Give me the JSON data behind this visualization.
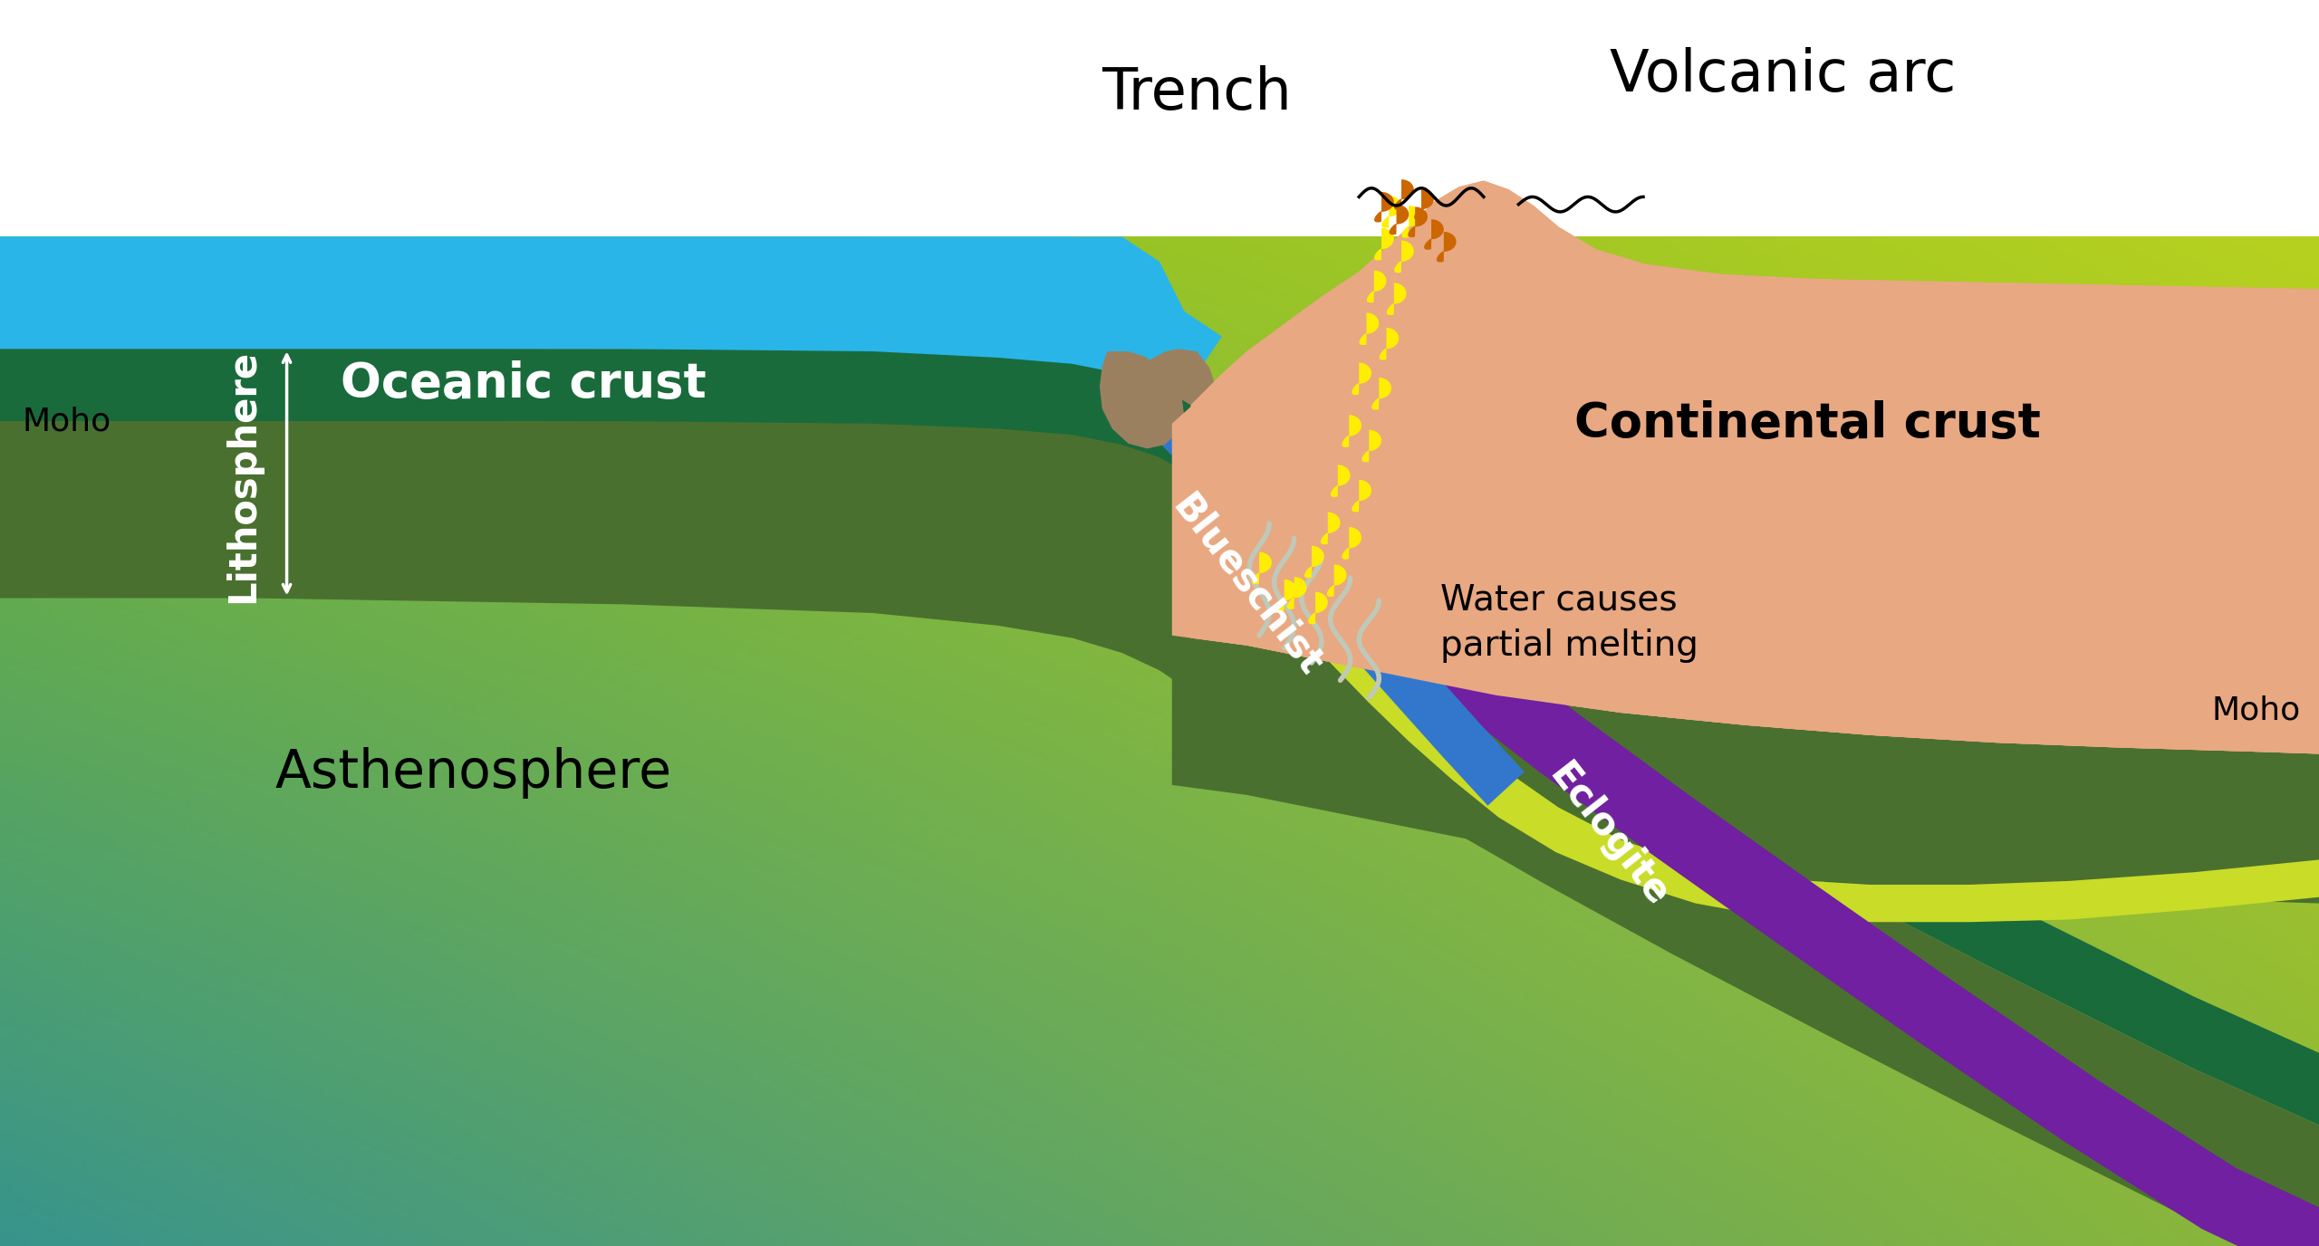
{
  "fig_width": 25.6,
  "fig_height": 13.76,
  "dpi": 100,
  "bg_color": "#ffffff",
  "ocean_color": "#29b5e8",
  "oceanic_crust_color": "#1a6b3c",
  "lith_mantle_color": "#4a7030",
  "asthenosphere_tl": [
    0.48,
    0.72,
    0.18
  ],
  "asthenosphere_tr": [
    0.72,
    0.82,
    0.12
  ],
  "asthenosphere_bl": [
    0.22,
    0.58,
    0.55
  ],
  "asthenosphere_br": [
    0.55,
    0.72,
    0.22
  ],
  "continental_crust_color": "#e8a882",
  "sediment_color": "#9b8060",
  "blueschist_color": "#3377cc",
  "eclogite_color": "#7020a0",
  "magma_yellow": "#ffee00",
  "magma_orange": "#cc6600",
  "water_color": "#c0c8b8",
  "title_trench": "Trench",
  "title_arc": "Volcanic arc",
  "label_oceanic_crust": "Oceanic crust",
  "label_asthenosphere": "Asthenosphere",
  "label_continental_crust": "Continental crust",
  "label_lithosphere": "Lithosphere",
  "label_blueschist": "Blueschist",
  "label_eclogite": "Eclogite",
  "label_water": "Water causes\npartial melting",
  "label_moho_left": "Moho",
  "label_moho_right": "Moho"
}
